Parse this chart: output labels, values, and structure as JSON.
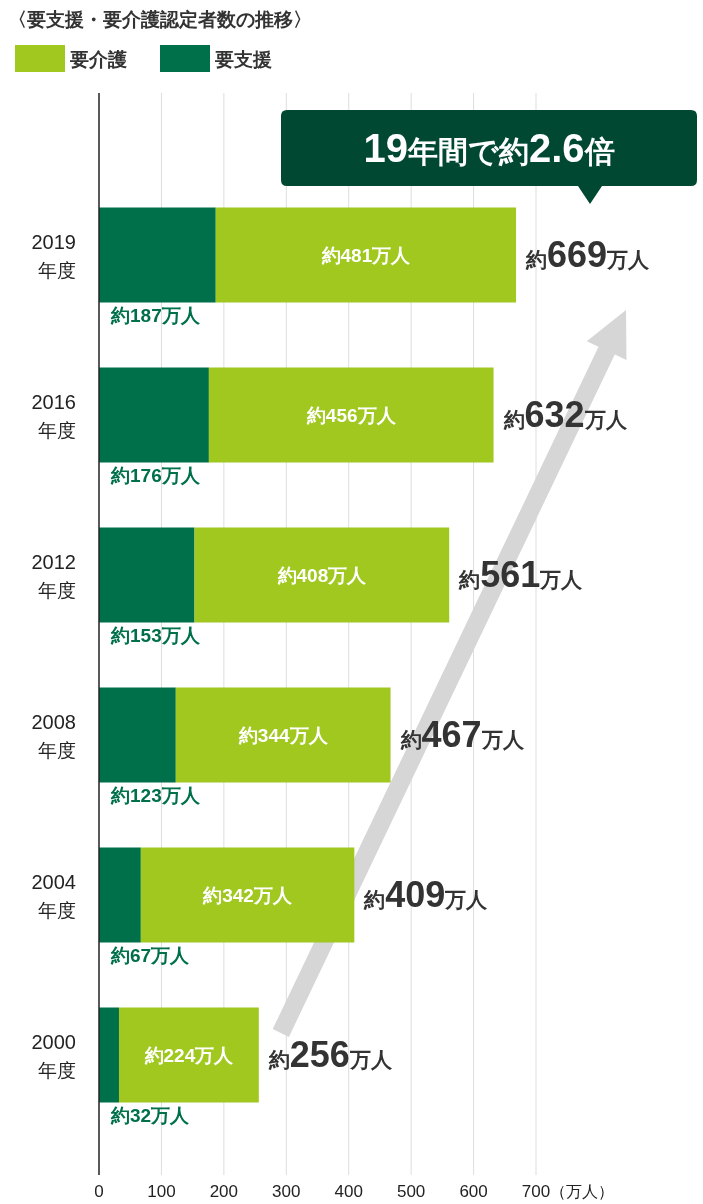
{
  "chart_data": {
    "type": "bar",
    "orientation": "horizontal",
    "stacked": true,
    "title": "〈要支援・要介護認定者数の推移〉",
    "categories": [
      "2019年度",
      "2016年度",
      "2012年度",
      "2008年度",
      "2004年度",
      "2000年度"
    ],
    "series": [
      {
        "name": "要支援",
        "color": "#00704b",
        "values": [
          187,
          176,
          153,
          123,
          67,
          32
        ],
        "value_labels": [
          "約187万人",
          "約176万人",
          "約153万人",
          "約123万人",
          "約67万人",
          "約32万人"
        ]
      },
      {
        "name": "要介護",
        "color": "#a0c81e",
        "values": [
          481,
          456,
          408,
          344,
          342,
          224
        ],
        "value_labels": [
          "約481万人",
          "約456万人",
          "約408万人",
          "約344万人",
          "約342万人",
          "約224万人"
        ]
      }
    ],
    "totals": [
      "約669万人",
      "約632万人",
      "約561万人",
      "約467万人",
      "約409万人",
      "約256万人"
    ],
    "xlabel": "（万人）",
    "xlim": [
      0,
      700
    ],
    "xticks": [
      0,
      100,
      200,
      300,
      400,
      500,
      600,
      700
    ],
    "grid": "x",
    "legend": "top left",
    "annotations": [
      "19年間で約2.6倍"
    ]
  }
}
